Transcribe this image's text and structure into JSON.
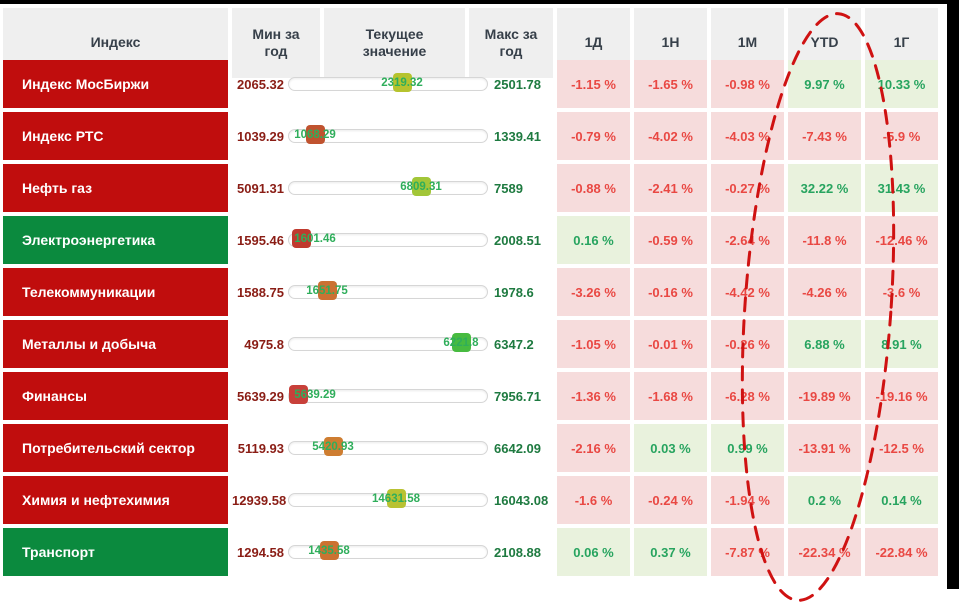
{
  "header": {
    "index": "Индекс",
    "min": "Мин за\nгод",
    "current": "Текущее\nзначение",
    "max": "Макс за\nгод",
    "periods": [
      "1Д",
      "1Н",
      "1М",
      "YTD",
      "1Г"
    ],
    "period_keys": [
      "1d",
      "1w",
      "1m",
      "ytd",
      "1y"
    ]
  },
  "colors": {
    "label_red": "#c00d0d",
    "label_green": "#0b8a3e",
    "header_bg": "#efefef",
    "header_text": "#37404a",
    "min_text": "#8a1d15",
    "max_text": "#1e7a40",
    "current_text": "#2fae5b",
    "pos_text": "#27a45f",
    "pos_bg": "#e9f2dd",
    "neg_text": "#e94843",
    "neg_bg": "#f6dcdc",
    "annotation": "#cf1212"
  },
  "annotation": {
    "type": "hand-drawn-dashed-ellipse",
    "highlighted_column": "YTD",
    "color": "#cf1212"
  },
  "rows": [
    {
      "name": "Индекс МосБиржи",
      "name_bg": "red",
      "min": "2065.32",
      "current": "2319.32",
      "max": "2501.78",
      "handle_color": "#b6c32e",
      "changes": [
        {
          "value": "-1.15 %",
          "dir": "neg"
        },
        {
          "value": "-1.65 %",
          "dir": "neg"
        },
        {
          "value": "-0.98 %",
          "dir": "neg"
        },
        {
          "value": "9.97 %",
          "dir": "pos"
        },
        {
          "value": "10.33 %",
          "dir": "pos"
        }
      ]
    },
    {
      "name": "Индекс РТС",
      "name_bg": "red",
      "min": "1039.29",
      "current": "1068.29",
      "max": "1339.41",
      "handle_color": "#c0532f",
      "changes": [
        {
          "value": "-0.79 %",
          "dir": "neg"
        },
        {
          "value": "-4.02 %",
          "dir": "neg"
        },
        {
          "value": "-4.03 %",
          "dir": "neg"
        },
        {
          "value": "-7.43 %",
          "dir": "neg"
        },
        {
          "value": "-5.9 %",
          "dir": "neg"
        }
      ]
    },
    {
      "name": "Нефть газ",
      "name_bg": "red",
      "min": "5091.31",
      "current": "6809.31",
      "max": "7589",
      "handle_color": "#a2c638",
      "changes": [
        {
          "value": "-0.88 %",
          "dir": "neg"
        },
        {
          "value": "-2.41 %",
          "dir": "neg"
        },
        {
          "value": "-0.27 %",
          "dir": "neg"
        },
        {
          "value": "32.22 %",
          "dir": "pos"
        },
        {
          "value": "31.43 %",
          "dir": "pos"
        }
      ]
    },
    {
      "name": "Электроэнергетика",
      "name_bg": "green",
      "min": "1595.46",
      "current": "1601.46",
      "max": "2008.51",
      "handle_color": "#c03a2e",
      "changes": [
        {
          "value": "0.16 %",
          "dir": "pos"
        },
        {
          "value": "-0.59 %",
          "dir": "neg"
        },
        {
          "value": "-2.64 %",
          "dir": "neg"
        },
        {
          "value": "-11.8 %",
          "dir": "neg"
        },
        {
          "value": "-12.46 %",
          "dir": "neg"
        }
      ]
    },
    {
      "name": "Телекоммуникации",
      "name_bg": "red",
      "min": "1588.75",
      "current": "1651.75",
      "max": "1978.6",
      "handle_color": "#cb7133",
      "changes": [
        {
          "value": "-3.26 %",
          "dir": "neg"
        },
        {
          "value": "-0.16 %",
          "dir": "neg"
        },
        {
          "value": "-4.42 %",
          "dir": "neg"
        },
        {
          "value": "-4.26 %",
          "dir": "neg"
        },
        {
          "value": "-3.6 %",
          "dir": "neg"
        }
      ]
    },
    {
      "name": "Металлы и добыча",
      "name_bg": "red",
      "min": "4975.8",
      "current": "6221.8",
      "max": "6347.2",
      "handle_color": "#47bb40",
      "changes": [
        {
          "value": "-1.05 %",
          "dir": "neg"
        },
        {
          "value": "-0.01 %",
          "dir": "neg"
        },
        {
          "value": "-0.26 %",
          "dir": "neg"
        },
        {
          "value": "6.88 %",
          "dir": "pos"
        },
        {
          "value": "8.91 %",
          "dir": "pos"
        }
      ]
    },
    {
      "name": "Финансы",
      "name_bg": "red",
      "min": "5639.29",
      "current": "5639.29",
      "max": "7956.71",
      "handle_color": "#c8403a",
      "changes": [
        {
          "value": "-1.36 %",
          "dir": "neg"
        },
        {
          "value": "-1.68 %",
          "dir": "neg"
        },
        {
          "value": "-6.28 %",
          "dir": "neg"
        },
        {
          "value": "-19.89 %",
          "dir": "neg"
        },
        {
          "value": "-19.16 %",
          "dir": "neg"
        }
      ]
    },
    {
      "name": "Потребительский сектор",
      "name_bg": "red",
      "min": "5119.93",
      "current": "5420.93",
      "max": "6642.09",
      "handle_color": "#ce7d31",
      "changes": [
        {
          "value": "-2.16 %",
          "dir": "neg"
        },
        {
          "value": "0.03 %",
          "dir": "pos"
        },
        {
          "value": "0.99 %",
          "dir": "pos"
        },
        {
          "value": "-13.91 %",
          "dir": "neg"
        },
        {
          "value": "-12.5 %",
          "dir": "neg"
        }
      ]
    },
    {
      "name": "Химия и нефтехимия",
      "name_bg": "red",
      "min": "12939.58",
      "current": "14631.58",
      "max": "16043.08",
      "handle_color": "#b9c233",
      "changes": [
        {
          "value": "-1.6 %",
          "dir": "neg"
        },
        {
          "value": "-0.24 %",
          "dir": "neg"
        },
        {
          "value": "-1.94 %",
          "dir": "neg"
        },
        {
          "value": "0.2 %",
          "dir": "pos"
        },
        {
          "value": "0.14 %",
          "dir": "pos"
        }
      ]
    },
    {
      "name": "Транспорт",
      "name_bg": "green",
      "min": "1294.58",
      "current": "1435.58",
      "max": "2108.88",
      "handle_color": "#cc7231",
      "changes": [
        {
          "value": "0.06 %",
          "dir": "pos"
        },
        {
          "value": "0.37 %",
          "dir": "pos"
        },
        {
          "value": "-7.87 %",
          "dir": "neg"
        },
        {
          "value": "-22.34 %",
          "dir": "neg"
        },
        {
          "value": "-22.84 %",
          "dir": "neg"
        }
      ]
    }
  ]
}
